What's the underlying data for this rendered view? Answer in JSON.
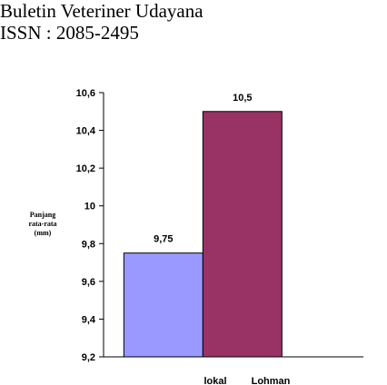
{
  "header": {
    "journal": "Buletin Veteriner Udayana",
    "issn": "ISSN : 2085-2495"
  },
  "chart_data": {
    "type": "bar",
    "categories": [
      "lokal",
      "Lohman"
    ],
    "values": [
      9.75,
      10.5
    ],
    "data_labels": [
      "9,75",
      "10,5"
    ],
    "ylabel_lines": [
      "Panjang",
      "rata-rata",
      "(mm)"
    ],
    "ylim": [
      9.2,
      10.6
    ],
    "yticks": [
      9.2,
      9.4,
      9.6,
      9.8,
      10,
      10.2,
      10.4,
      10.6
    ],
    "ytick_labels": [
      "9,2",
      "9,4",
      "9,6",
      "9,8",
      "10",
      "10,2",
      "10,4",
      "10,6"
    ],
    "colors": [
      "#9999ff",
      "#993366"
    ],
    "grid": false,
    "legend": "none"
  }
}
